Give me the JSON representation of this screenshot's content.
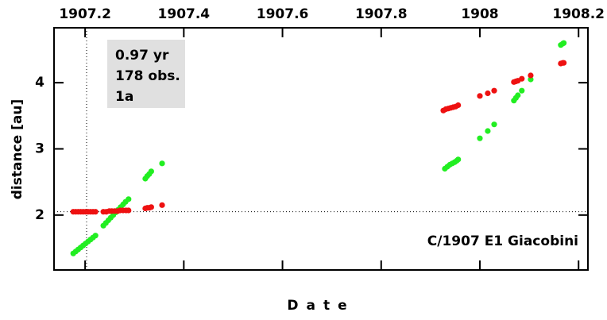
{
  "chart_data": {
    "type": "scatter",
    "xlabel": "Date",
    "ylabel": "distance [au]",
    "annotations": [
      "0.97 yr",
      "178 obs.",
      "1a"
    ],
    "object_label": "C/1907 E1 Giacobini",
    "xlim": [
      1907.137,
      1908.219
    ],
    "ylim": [
      1.17,
      4.83
    ],
    "xticks": [
      1907.2,
      1907.4,
      1907.6,
      1907.8,
      1908,
      1908.2
    ],
    "yticks": [
      2,
      3,
      4
    ],
    "reference_x": 1907.203,
    "reference_y": 2.05,
    "series": [
      {
        "color": "#22ee22",
        "x": [
          1907.176,
          1907.181,
          1907.186,
          1907.191,
          1907.196,
          1907.201,
          1907.206,
          1907.211,
          1907.216,
          1907.221,
          1907.237,
          1907.242,
          1907.247,
          1907.252,
          1907.257,
          1907.262,
          1907.267,
          1907.272,
          1907.277,
          1907.282,
          1907.288,
          1907.322,
          1907.326,
          1907.33,
          1907.334,
          1907.356,
          1907.929,
          1907.934,
          1907.939,
          1907.944,
          1907.949,
          1907.953,
          1907.956,
          1908.0,
          1908.016,
          1908.029,
          1908.069,
          1908.073,
          1908.077,
          1908.085,
          1908.103,
          1908.164,
          1908.168,
          1908.17
        ],
        "values": [
          1.42,
          1.45,
          1.48,
          1.51,
          1.54,
          1.57,
          1.6,
          1.63,
          1.66,
          1.69,
          1.84,
          1.88,
          1.92,
          1.96,
          2.0,
          2.04,
          2.08,
          2.12,
          2.16,
          2.2,
          2.24,
          2.55,
          2.59,
          2.62,
          2.66,
          2.78,
          2.7,
          2.73,
          2.76,
          2.78,
          2.8,
          2.82,
          2.84,
          3.16,
          3.27,
          3.37,
          3.73,
          3.77,
          3.81,
          3.88,
          4.05,
          4.57,
          4.59,
          4.6
        ]
      },
      {
        "color": "#ee1111",
        "x": [
          1907.176,
          1907.181,
          1907.186,
          1907.191,
          1907.196,
          1907.201,
          1907.206,
          1907.211,
          1907.216,
          1907.221,
          1907.237,
          1907.243,
          1907.249,
          1907.254,
          1907.26,
          1907.266,
          1907.271,
          1907.277,
          1907.283,
          1907.288,
          1907.322,
          1907.326,
          1907.33,
          1907.334,
          1907.356,
          1907.926,
          1907.931,
          1907.936,
          1907.941,
          1907.946,
          1907.951,
          1907.956,
          1908.0,
          1908.016,
          1908.029,
          1908.069,
          1908.073,
          1908.077,
          1908.085,
          1908.103,
          1908.164,
          1908.168,
          1908.17
        ],
        "values": [
          2.05,
          2.05,
          2.05,
          2.05,
          2.05,
          2.05,
          2.05,
          2.05,
          2.05,
          2.05,
          2.05,
          2.05,
          2.06,
          2.06,
          2.06,
          2.06,
          2.07,
          2.07,
          2.07,
          2.07,
          2.1,
          2.11,
          2.11,
          2.12,
          2.15,
          3.58,
          3.6,
          3.61,
          3.62,
          3.63,
          3.64,
          3.66,
          3.8,
          3.84,
          3.88,
          4.01,
          4.02,
          4.03,
          4.06,
          4.11,
          4.29,
          4.3,
          4.3
        ]
      }
    ]
  }
}
